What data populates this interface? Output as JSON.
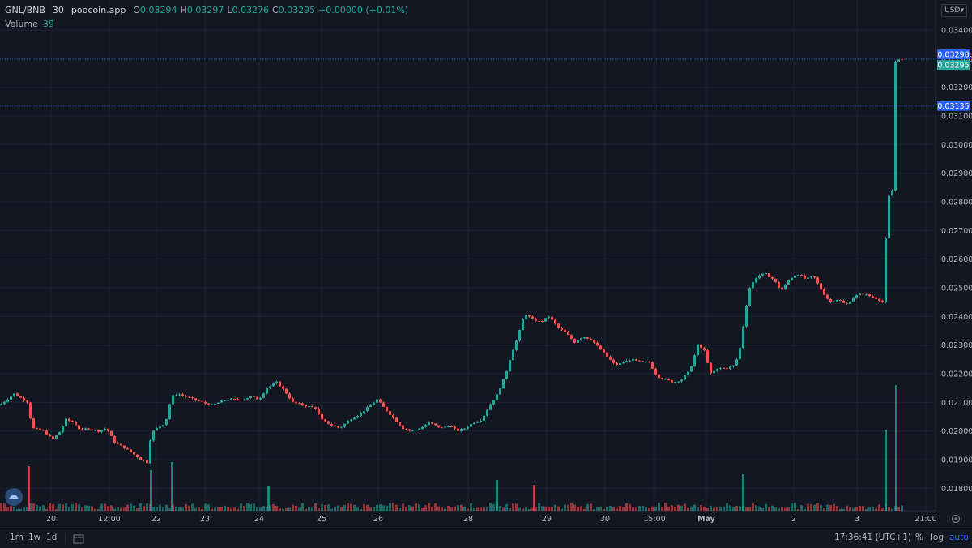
{
  "legend": {
    "symbol": "GNL/BNB",
    "interval": "30",
    "source": "poocoin.app",
    "o_key": "O",
    "o_val": "0.03294",
    "h_key": "H",
    "h_val": "0.03297",
    "l_key": "L",
    "l_val": "0.03276",
    "c_key": "C",
    "c_val": "0.03295",
    "change": "+0.00000 (+0.01%)",
    "volume_label": "Volume",
    "volume_value": "39"
  },
  "currency": "USD",
  "colors": {
    "up": "#26a69a",
    "down": "#ef5350",
    "background": "#131722",
    "grid": "#1e2230",
    "accent": "#2962ff"
  },
  "bottom_bar": {
    "intervals": [
      "1m",
      "1w",
      "1d"
    ],
    "time": "17:36:41 (UTC+1)",
    "percent_label": "%",
    "log_label": "log",
    "auto_label": "auto"
  },
  "chart_data": {
    "type": "candlestick",
    "y_range": [
      0.0175,
      0.0342
    ],
    "y_ticks": [
      "0.03400",
      "0.03300",
      "0.03200",
      "0.03100",
      "0.03000",
      "0.02900",
      "0.02800",
      "0.02700",
      "0.02600",
      "0.02500",
      "0.02400",
      "0.02300",
      "0.02200",
      "0.02100",
      "0.02000",
      "0.01900",
      "0.01800"
    ],
    "x_ticks": [
      "20",
      "12:00",
      "22",
      "23",
      "24",
      "25",
      "26",
      "28",
      "29",
      "30",
      "15:00",
      "May",
      "2",
      "3",
      "21:00"
    ],
    "price_markers": [
      {
        "label": "0.03298",
        "value": 0.03298,
        "color": "#2962ff"
      },
      {
        "label": "0.03295",
        "value": 0.03295,
        "color": "#26a69a"
      },
      {
        "label": "0.03135",
        "value": 0.03135,
        "color": "#2962ff"
      }
    ],
    "close_path": [
      [
        0,
        0.0209
      ],
      [
        18,
        0.0213
      ],
      [
        35,
        0.021
      ],
      [
        40,
        0.0201
      ],
      [
        55,
        0.02
      ],
      [
        65,
        0.0197
      ],
      [
        75,
        0.02
      ],
      [
        82,
        0.0204
      ],
      [
        92,
        0.0203
      ],
      [
        100,
        0.02
      ],
      [
        108,
        0.0201
      ],
      [
        122,
        0.02
      ],
      [
        132,
        0.0201
      ],
      [
        142,
        0.0196
      ],
      [
        155,
        0.0194
      ],
      [
        165,
        0.0192
      ],
      [
        175,
        0.019
      ],
      [
        182,
        0.0189
      ],
      [
        186,
        0.0197
      ],
      [
        190,
        0.02
      ],
      [
        200,
        0.0202
      ],
      [
        205,
        0.0203
      ],
      [
        212,
        0.0212
      ],
      [
        220,
        0.0213
      ],
      [
        230,
        0.0212
      ],
      [
        250,
        0.021
      ],
      [
        262,
        0.0209
      ],
      [
        280,
        0.0211
      ],
      [
        300,
        0.0211
      ],
      [
        310,
        0.0212
      ],
      [
        320,
        0.0211
      ],
      [
        330,
        0.0215
      ],
      [
        342,
        0.0217
      ],
      [
        352,
        0.0214
      ],
      [
        362,
        0.021
      ],
      [
        375,
        0.0209
      ],
      [
        390,
        0.0208
      ],
      [
        397,
        0.0204
      ],
      [
        410,
        0.0202
      ],
      [
        420,
        0.0201
      ],
      [
        432,
        0.0204
      ],
      [
        445,
        0.0206
      ],
      [
        458,
        0.0209
      ],
      [
        466,
        0.0211
      ],
      [
        475,
        0.0208
      ],
      [
        488,
        0.0204
      ],
      [
        498,
        0.0201
      ],
      [
        508,
        0.02
      ],
      [
        520,
        0.0201
      ],
      [
        530,
        0.0203
      ],
      [
        545,
        0.0201
      ],
      [
        555,
        0.0202
      ],
      [
        565,
        0.02
      ],
      [
        575,
        0.0201
      ],
      [
        585,
        0.0203
      ],
      [
        595,
        0.0204
      ],
      [
        605,
        0.0209
      ],
      [
        615,
        0.0213
      ],
      [
        625,
        0.022
      ],
      [
        632,
        0.0227
      ],
      [
        640,
        0.0233
      ],
      [
        648,
        0.0241
      ],
      [
        658,
        0.0239
      ],
      [
        668,
        0.0238
      ],
      [
        678,
        0.024
      ],
      [
        690,
        0.0236
      ],
      [
        700,
        0.0234
      ],
      [
        710,
        0.0231
      ],
      [
        720,
        0.0233
      ],
      [
        730,
        0.0232
      ],
      [
        740,
        0.0229
      ],
      [
        750,
        0.0226
      ],
      [
        760,
        0.0223
      ],
      [
        770,
        0.0224
      ],
      [
        780,
        0.0225
      ],
      [
        792,
        0.0224
      ],
      [
        802,
        0.0224
      ],
      [
        812,
        0.0219
      ],
      [
        822,
        0.0218
      ],
      [
        832,
        0.0217
      ],
      [
        842,
        0.0218
      ],
      [
        852,
        0.0221
      ],
      [
        862,
        0.023
      ],
      [
        870,
        0.0228
      ],
      [
        878,
        0.022
      ],
      [
        888,
        0.0222
      ],
      [
        898,
        0.0222
      ],
      [
        908,
        0.0223
      ],
      [
        915,
        0.023
      ],
      [
        920,
        0.0241
      ],
      [
        926,
        0.025
      ],
      [
        935,
        0.0254
      ],
      [
        945,
        0.0255
      ],
      [
        955,
        0.0253
      ],
      [
        965,
        0.0249
      ],
      [
        975,
        0.0253
      ],
      [
        985,
        0.0255
      ],
      [
        995,
        0.0253
      ],
      [
        1005,
        0.0254
      ],
      [
        1015,
        0.0249
      ],
      [
        1025,
        0.0245
      ],
      [
        1035,
        0.0246
      ],
      [
        1045,
        0.0244
      ],
      [
        1055,
        0.0247
      ],
      [
        1065,
        0.0248
      ],
      [
        1075,
        0.0247
      ],
      [
        1085,
        0.0246
      ],
      [
        1090,
        0.0245
      ],
      [
        1094,
        0.0267
      ],
      [
        1098,
        0.0282
      ],
      [
        1102,
        0.0284
      ],
      [
        1106,
        0.0329
      ],
      [
        1110,
        0.033
      ],
      [
        1114,
        0.03295
      ]
    ],
    "volume_spikes": [
      {
        "x": 34,
        "h": 55,
        "dir": "down"
      },
      {
        "x": 185,
        "h": 50,
        "dir": "up"
      },
      {
        "x": 211,
        "h": 60,
        "dir": "up"
      },
      {
        "x": 330,
        "h": 30,
        "dir": "up"
      },
      {
        "x": 612,
        "h": 38,
        "dir": "up"
      },
      {
        "x": 658,
        "h": 32,
        "dir": "down"
      },
      {
        "x": 916,
        "h": 45,
        "dir": "up"
      },
      {
        "x": 1092,
        "h": 100,
        "dir": "up"
      },
      {
        "x": 1105,
        "h": 155,
        "dir": "up"
      }
    ]
  }
}
